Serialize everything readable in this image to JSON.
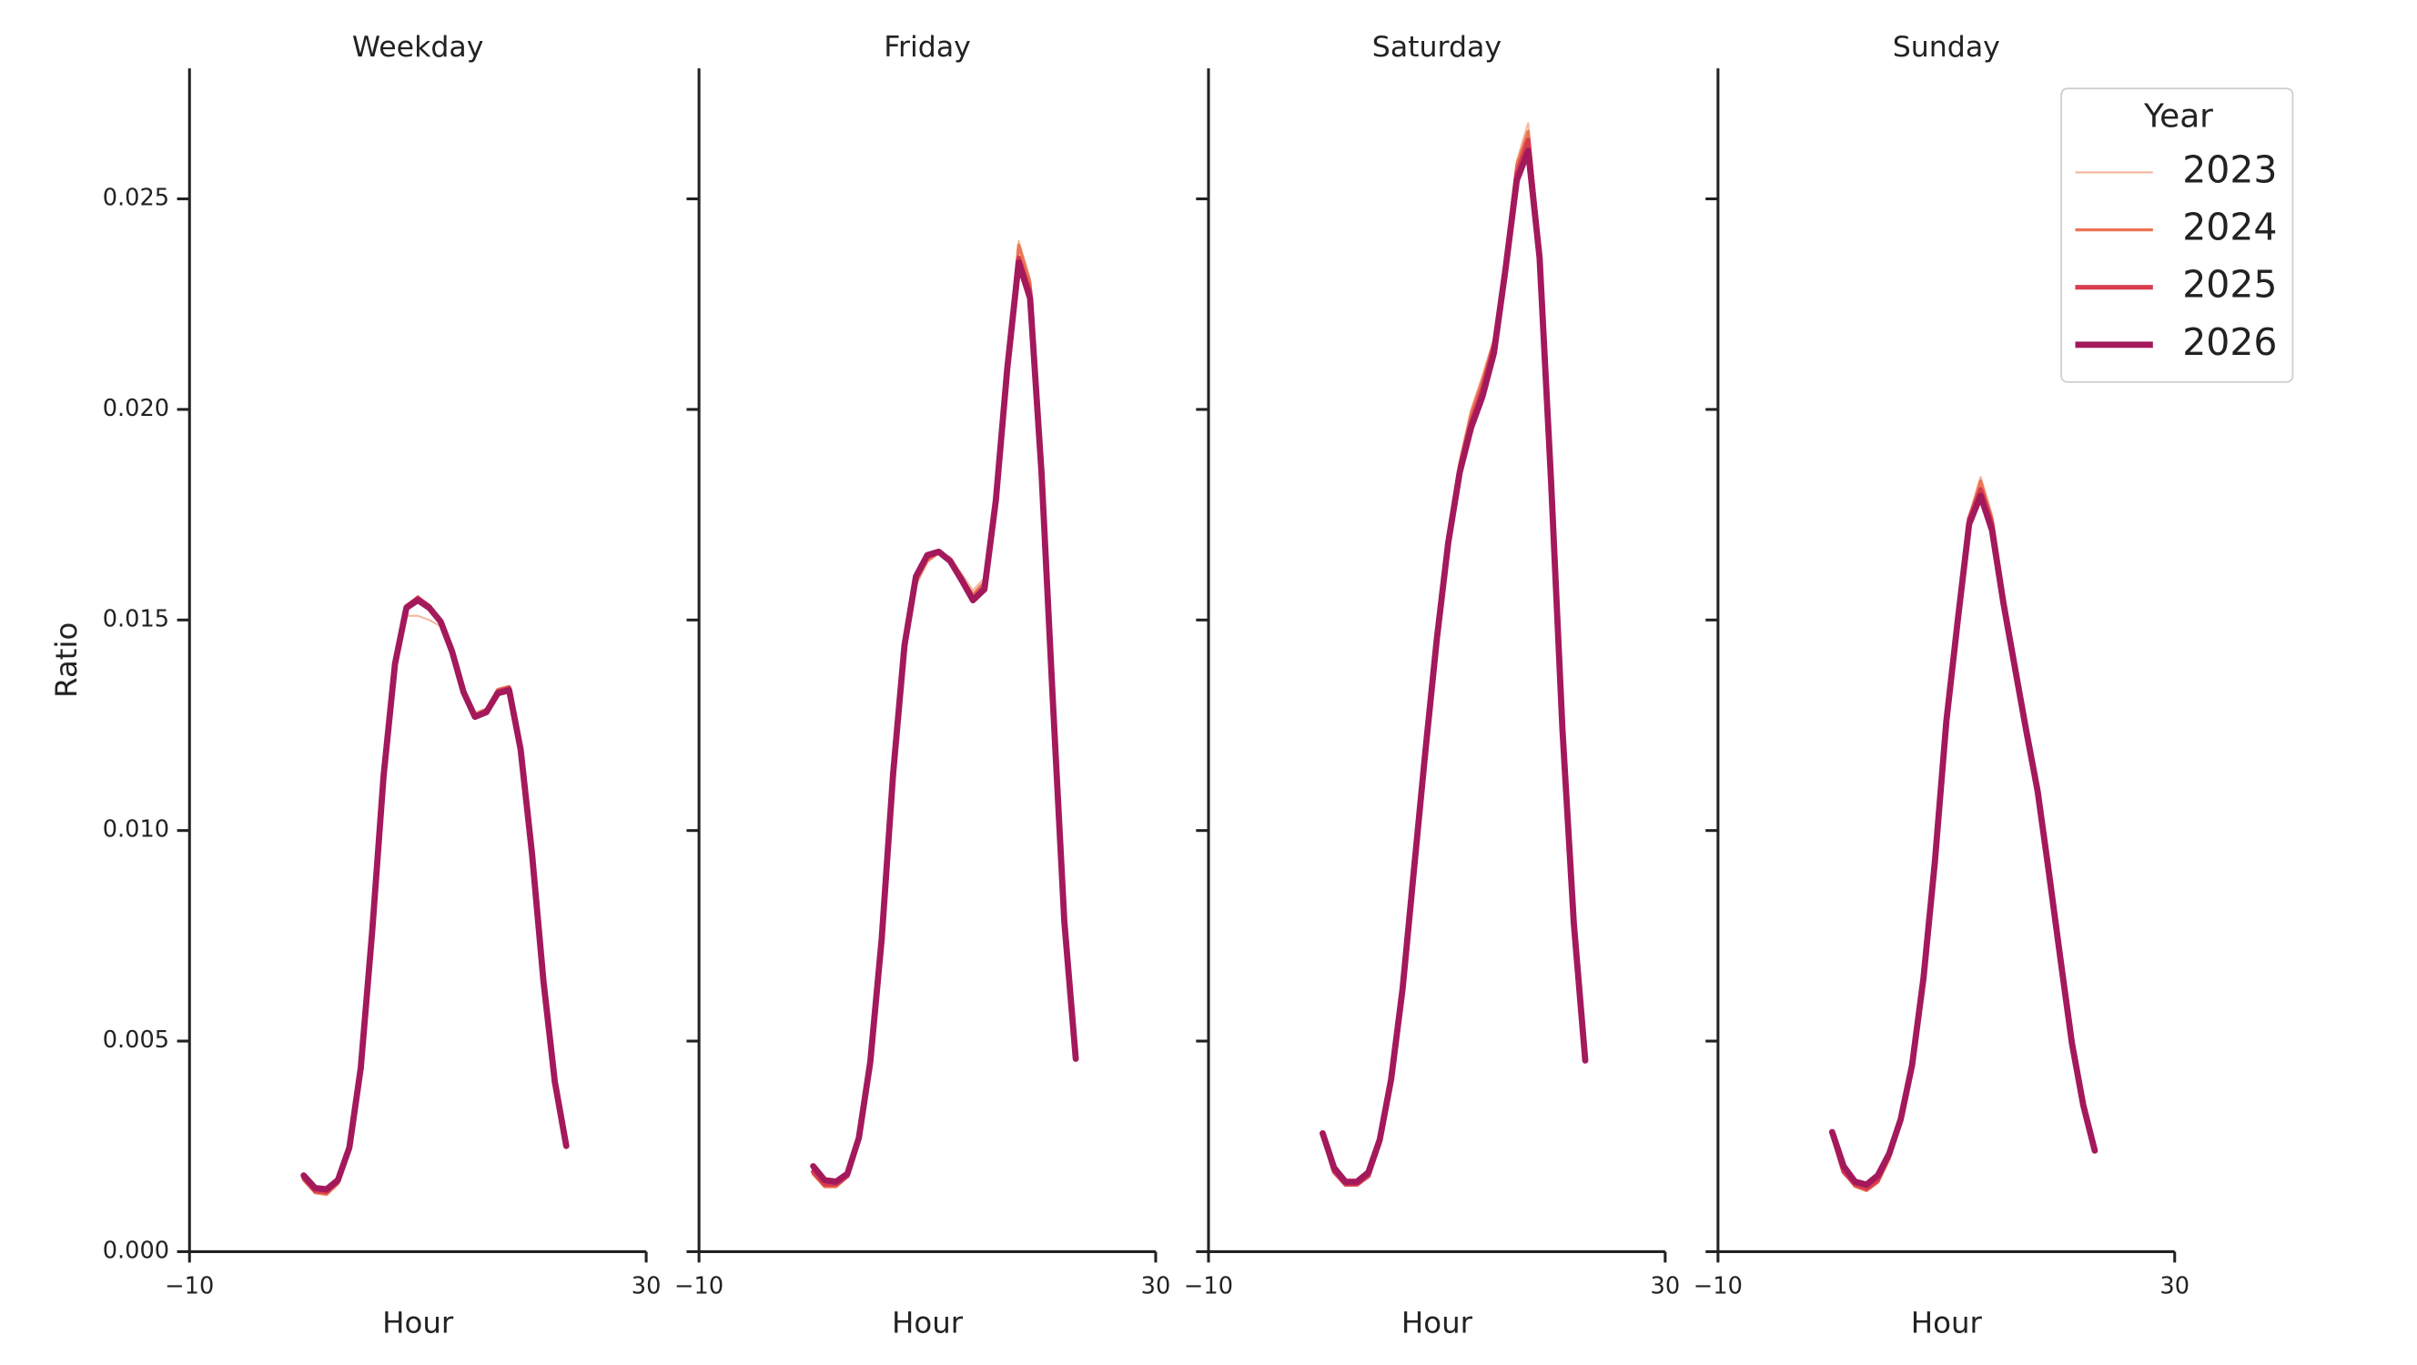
{
  "chart_data": [
    {
      "type": "line",
      "title": "Weekday",
      "x_label": "Hour",
      "y_label": "Ratio",
      "legend_title": "Year",
      "legend": "upper right",
      "x": [
        0,
        1,
        2,
        3,
        4,
        5,
        6,
        7,
        8,
        9,
        10,
        11,
        12,
        13,
        14,
        15,
        16,
        17,
        18,
        19,
        20,
        21,
        22,
        23
      ],
      "xlim": [
        -10,
        30
      ],
      "xticks": [
        {
          "value": -10,
          "label": "−10"
        },
        30
      ],
      "ylim": [
        0,
        0.0281
      ],
      "yticks": [
        {
          "value": 0,
          "label": "0.000"
        },
        {
          "value": 0.005,
          "label": "0.005"
        },
        {
          "value": 0.01,
          "label": "0.010"
        },
        {
          "value": 0.015,
          "label": "0.015"
        },
        {
          "value": 0.02,
          "label": "0.020"
        },
        {
          "value": 0.025,
          "label": "0.025"
        }
      ],
      "series": [
        {
          "name": "2023",
          "color": "#f4b79d",
          "values": [
            0.00168,
            0.0014,
            0.00138,
            0.00165,
            0.0025,
            0.0044,
            0.0076,
            0.0113,
            0.0139,
            0.0151,
            0.0151,
            0.015,
            0.01485,
            0.0142,
            0.0133,
            0.0128,
            0.0129,
            0.0133,
            0.0134,
            0.0119,
            0.0094,
            0.0064,
            0.004,
            0.0025
          ]
        },
        {
          "name": "2024",
          "color": "#eb7655",
          "values": [
            0.0017,
            0.0014,
            0.00136,
            0.00162,
            0.00245,
            0.0043,
            0.0075,
            0.0112,
            0.0139,
            0.0153,
            0.01555,
            0.0153,
            0.01494,
            0.01422,
            0.01325,
            0.01275,
            0.01288,
            0.01335,
            0.01342,
            0.0119,
            0.0094,
            0.0064,
            0.004,
            0.00258
          ]
        },
        {
          "name": "2025",
          "color": "#d73c4f",
          "values": [
            0.00175,
            0.00145,
            0.00142,
            0.00166,
            0.00247,
            0.00436,
            0.0076,
            0.0113,
            0.01396,
            0.01532,
            0.01552,
            0.01532,
            0.01496,
            0.01425,
            0.01329,
            0.01272,
            0.01284,
            0.0133,
            0.01338,
            0.01193,
            0.00945,
            0.00643,
            0.00403,
            0.00255
          ]
        },
        {
          "name": "2026",
          "color": "#a3195b",
          "values": [
            0.00181,
            0.00151,
            0.00148,
            0.0017,
            0.00247,
            0.00436,
            0.0076,
            0.0113,
            0.01396,
            0.01529,
            0.01547,
            0.01529,
            0.01496,
            0.01425,
            0.01329,
            0.0127,
            0.01281,
            0.01326,
            0.01333,
            0.01193,
            0.00945,
            0.00643,
            0.00403,
            0.00251
          ]
        }
      ]
    },
    {
      "type": "line",
      "title": "Friday",
      "x_label": "Hour",
      "x": [
        0,
        1,
        2,
        3,
        4,
        5,
        6,
        7,
        8,
        9,
        10,
        11,
        12,
        13,
        14,
        15,
        16,
        17,
        18,
        19,
        20,
        21,
        22,
        23
      ],
      "xlim": [
        -10,
        30
      ],
      "xticks": [
        {
          "value": -10,
          "label": "−10"
        },
        30
      ],
      "ylim": [
        0,
        0.0281
      ],
      "series": [
        {
          "name": "2023",
          "color": "#f4b79d",
          "values": [
            0.00182,
            0.00152,
            0.00152,
            0.00176,
            0.0027,
            0.0045,
            0.0074,
            0.0113,
            0.0143,
            0.0158,
            0.0164,
            0.0166,
            0.0165,
            0.0161,
            0.0157,
            0.016,
            0.0179,
            0.0212,
            0.024,
            0.0231,
            0.0188,
            0.0132,
            0.0079,
            0.0046
          ]
        },
        {
          "name": "2024",
          "color": "#eb7655",
          "values": [
            0.00185,
            0.00155,
            0.00155,
            0.00178,
            0.0027,
            0.0045,
            0.0074,
            0.0113,
            0.0143,
            0.0159,
            0.0164,
            0.0166,
            0.0164,
            0.016,
            0.0156,
            0.0159,
            0.0179,
            0.0211,
            0.0239,
            0.023,
            0.0187,
            0.0132,
            0.0079,
            0.0046
          ]
        },
        {
          "name": "2025",
          "color": "#d73c4f",
          "values": [
            0.0019,
            0.0016,
            0.0016,
            0.0018,
            0.0027,
            0.0045,
            0.0074,
            0.0113,
            0.0144,
            0.016,
            0.0165,
            0.0166,
            0.0164,
            0.016,
            0.0155,
            0.0158,
            0.0178,
            0.021,
            0.0236,
            0.0228,
            0.0186,
            0.0131,
            0.0079,
            0.0046
          ]
        },
        {
          "name": "2026",
          "color": "#a3195b",
          "values": [
            0.00203,
            0.0017,
            0.00166,
            0.00185,
            0.0027,
            0.0045,
            0.00742,
            0.01134,
            0.0144,
            0.01603,
            0.01654,
            0.01662,
            0.0164,
            0.01595,
            0.01547,
            0.01573,
            0.01784,
            0.02097,
            0.02349,
            0.02264,
            0.0185,
            0.01304,
            0.00783,
            0.00458
          ]
        }
      ]
    },
    {
      "type": "line",
      "title": "Saturday",
      "x_label": "Hour",
      "x": [
        0,
        1,
        2,
        3,
        4,
        5,
        6,
        7,
        8,
        9,
        10,
        11,
        12,
        13,
        14,
        15,
        16,
        17,
        18,
        19,
        20,
        21,
        22,
        23
      ],
      "xlim": [
        -10,
        30
      ],
      "xticks": [
        {
          "value": -10,
          "label": "−10"
        },
        30
      ],
      "ylim": [
        0,
        0.0281
      ],
      "series": [
        {
          "name": "2023",
          "color": "#f4b79d",
          "values": [
            0.0028,
            0.0019,
            0.00158,
            0.00158,
            0.0018,
            0.0026,
            0.0041,
            0.0062,
            0.0091,
            0.0119,
            0.0146,
            0.017,
            0.0188,
            0.02,
            0.0208,
            0.0217,
            0.0236,
            0.0259,
            0.0268,
            0.0239,
            0.0186,
            0.0125,
            0.0078,
            0.0046
          ]
        },
        {
          "name": "2024",
          "color": "#eb7655",
          "values": [
            0.0028,
            0.0019,
            0.00158,
            0.00158,
            0.0018,
            0.0026,
            0.0041,
            0.0062,
            0.0091,
            0.0119,
            0.0146,
            0.0169,
            0.0187,
            0.0199,
            0.0207,
            0.0216,
            0.0235,
            0.0258,
            0.0266,
            0.0238,
            0.0185,
            0.0125,
            0.0078,
            0.0046
          ]
        },
        {
          "name": "2025",
          "color": "#d73c4f",
          "values": [
            0.0028,
            0.0019,
            0.0016,
            0.0016,
            0.0018,
            0.0026,
            0.0041,
            0.0062,
            0.0091,
            0.0119,
            0.0146,
            0.0169,
            0.0186,
            0.0197,
            0.0205,
            0.0215,
            0.0234,
            0.0256,
            0.0264,
            0.0237,
            0.0184,
            0.0125,
            0.0078,
            0.0046
          ]
        },
        {
          "name": "2026",
          "color": "#a3195b",
          "values": [
            0.00281,
            0.00199,
            0.00166,
            0.00166,
            0.00188,
            0.00266,
            0.0041,
            0.00624,
            0.00908,
            0.01189,
            0.01455,
            0.01684,
            0.0185,
            0.01957,
            0.02031,
            0.02134,
            0.0233,
            0.02544,
            0.02614,
            0.0236,
            0.01832,
            0.01241,
            0.00779,
            0.00454
          ]
        }
      ]
    },
    {
      "type": "line",
      "title": "Sunday",
      "x_label": "Hour",
      "x": [
        0,
        1,
        2,
        3,
        4,
        5,
        6,
        7,
        8,
        9,
        10,
        11,
        12,
        13,
        14,
        15,
        16,
        17,
        18,
        19,
        20,
        21,
        22,
        23
      ],
      "xlim": [
        -10,
        30
      ],
      "xticks": [
        {
          "value": -10,
          "label": "−10"
        },
        30
      ],
      "ylim": [
        0,
        0.0281
      ],
      "series": [
        {
          "name": "2023",
          "color": "#f4b79d",
          "values": [
            0.0028,
            0.0019,
            0.00155,
            0.00145,
            0.00165,
            0.0022,
            0.0031,
            0.0044,
            0.0065,
            0.0093,
            0.0126,
            0.015,
            0.0175,
            0.0184,
            0.0175,
            0.0155,
            0.0139,
            0.0124,
            0.0109,
            0.009,
            0.0069,
            0.005,
            0.0035,
            0.0024
          ]
        },
        {
          "name": "2024",
          "color": "#eb7655",
          "values": [
            0.0028,
            0.0019,
            0.00155,
            0.00145,
            0.00165,
            0.0022,
            0.0031,
            0.0044,
            0.0065,
            0.0093,
            0.0126,
            0.015,
            0.0174,
            0.0183,
            0.0174,
            0.0155,
            0.0139,
            0.0124,
            0.0109,
            0.009,
            0.0069,
            0.005,
            0.0035,
            0.0024
          ]
        },
        {
          "name": "2025",
          "color": "#d73c4f",
          "values": [
            0.0028,
            0.0019,
            0.0016,
            0.0015,
            0.0017,
            0.0023,
            0.0031,
            0.0044,
            0.0065,
            0.0093,
            0.0126,
            0.015,
            0.0174,
            0.0181,
            0.0173,
            0.0155,
            0.0139,
            0.0124,
            0.0109,
            0.009,
            0.0069,
            0.005,
            0.0035,
            0.0024
          ]
        },
        {
          "name": "2026",
          "color": "#a3195b",
          "values": [
            0.00284,
            0.00203,
            0.00166,
            0.00159,
            0.00181,
            0.00233,
            0.00314,
            0.00443,
            0.0065,
            0.00927,
            0.01259,
            0.01499,
            0.01728,
            0.01795,
            0.01713,
            0.0154,
            0.01388,
            0.01237,
            0.01093,
            0.00897,
            0.00694,
            0.00495,
            0.00347,
            0.0024
          ]
        }
      ]
    }
  ]
}
